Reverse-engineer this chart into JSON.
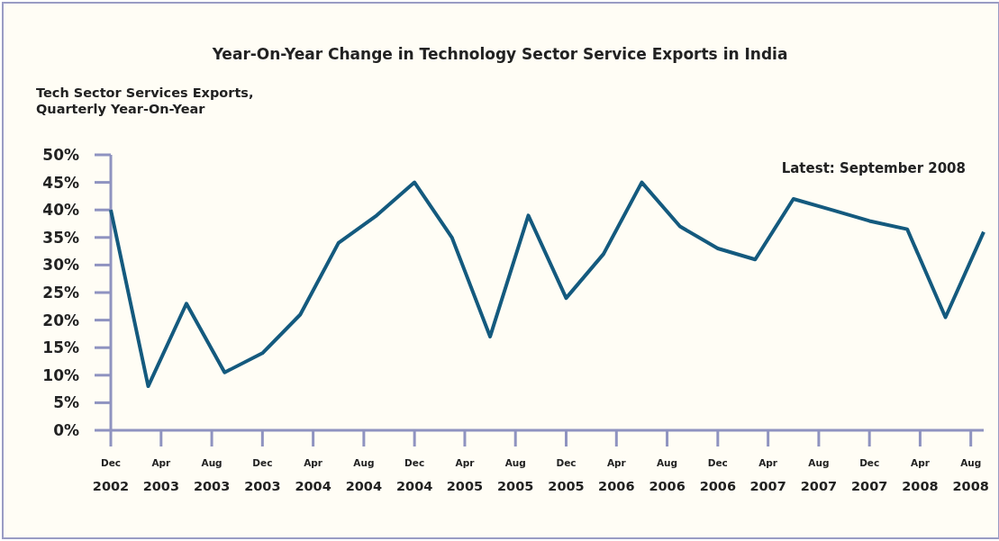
{
  "chart_data": {
    "type": "line",
    "title": "Year-On-Year Change in Technology Sector Service Exports in India",
    "ylabel": "Tech Sector Services Exports, Quarterly Year-On-Year",
    "annotations": [
      "Latest: September 2008"
    ],
    "x": [
      "2002-12",
      "2003-03",
      "2003-06",
      "2003-09",
      "2003-12",
      "2004-03",
      "2004-06",
      "2004-09",
      "2004-12",
      "2005-03",
      "2005-06",
      "2005-09",
      "2005-12",
      "2006-03",
      "2006-06",
      "2006-09",
      "2006-12",
      "2007-03",
      "2007-06",
      "2007-09",
      "2007-12",
      "2008-03",
      "2008-06",
      "2008-09"
    ],
    "series": [
      {
        "color": "#145a7e",
        "values": [
          40,
          8,
          23,
          10.5,
          14,
          21,
          34,
          39,
          45,
          35,
          17,
          39,
          24,
          32,
          45,
          37,
          33,
          31,
          42,
          40,
          38,
          36.5,
          20.5,
          36
        ]
      }
    ],
    "xlim": [
      "2002-12",
      "2008-09"
    ],
    "xticks": [
      {
        "value": "2002-12",
        "label": "Dec 2002"
      },
      {
        "value": "2003-04",
        "label": "Apr 2003"
      },
      {
        "value": "2003-08",
        "label": "Aug 2003"
      },
      {
        "value": "2003-12",
        "label": "Dec 2003"
      },
      {
        "value": "2004-04",
        "label": "Apr 2004"
      },
      {
        "value": "2004-08",
        "label": "Aug 2004"
      },
      {
        "value": "2004-12",
        "label": "Dec 2004"
      },
      {
        "value": "2005-04",
        "label": "Apr 2005"
      },
      {
        "value": "2005-08",
        "label": "Aug 2005"
      },
      {
        "value": "2005-12",
        "label": "Dec 2005"
      },
      {
        "value": "2006-04",
        "label": "Apr 2006"
      },
      {
        "value": "2006-08",
        "label": "Aug 2006"
      },
      {
        "value": "2006-12",
        "label": "Dec 2006"
      },
      {
        "value": "2007-04",
        "label": "Apr 2007"
      },
      {
        "value": "2007-08",
        "label": "Aug 2007"
      },
      {
        "value": "2007-12",
        "label": "Dec 2007"
      },
      {
        "value": "2008-04",
        "label": "Apr 2008"
      },
      {
        "value": "2008-08",
        "label": "Aug 2008"
      }
    ],
    "ylim": [
      0,
      50
    ],
    "yticks": [
      {
        "value": 0,
        "label": "0%"
      },
      {
        "value": 5,
        "label": "5%"
      },
      {
        "value": 10,
        "label": "10%"
      },
      {
        "value": 15,
        "label": "15%"
      },
      {
        "value": 20,
        "label": "20%"
      },
      {
        "value": 25,
        "label": "25%"
      },
      {
        "value": 30,
        "label": "30%"
      },
      {
        "value": 35,
        "label": "35%"
      },
      {
        "value": 40,
        "label": "40%"
      },
      {
        "value": 45,
        "label": "45%"
      },
      {
        "value": 50,
        "label": "50%"
      }
    ],
    "grid": false,
    "marker": "none",
    "line_style": "solid"
  }
}
